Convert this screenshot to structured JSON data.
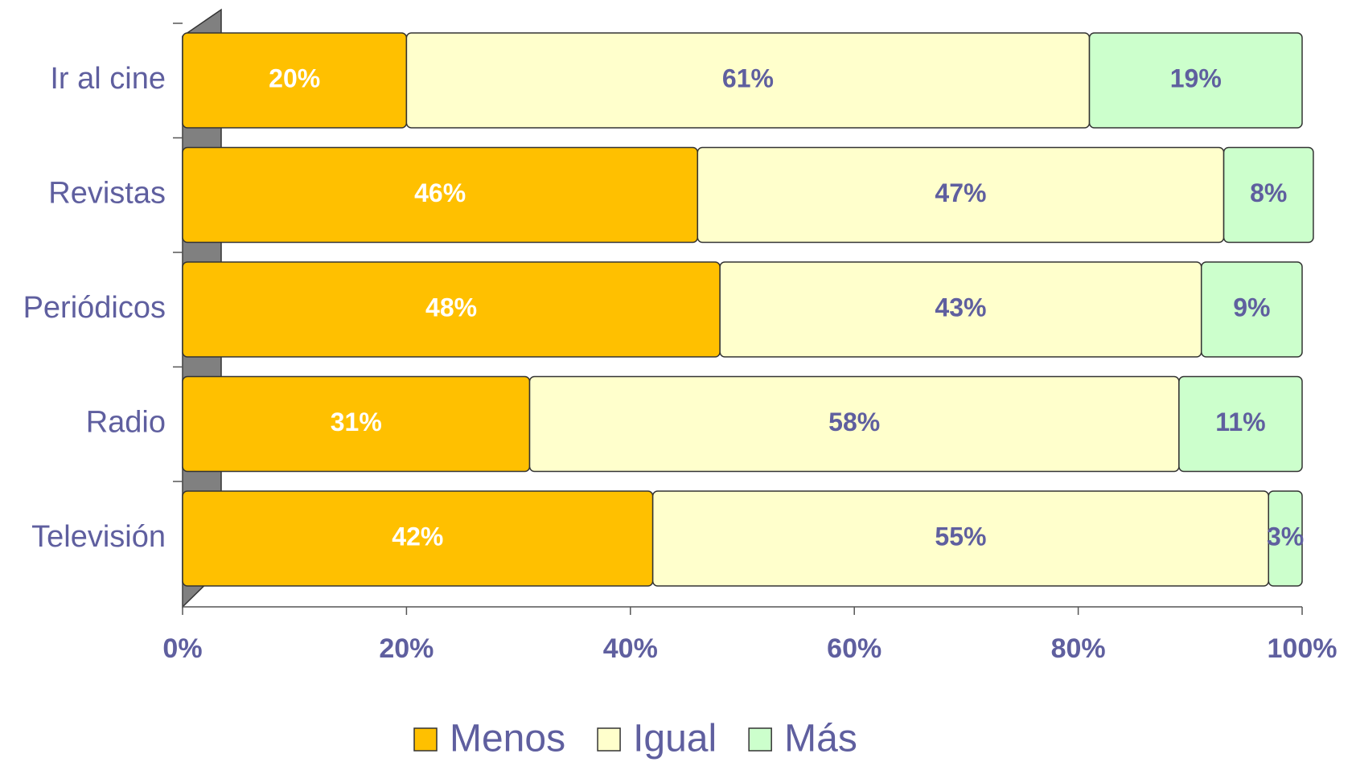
{
  "chart_data": {
    "type": "bar",
    "orientation": "horizontal",
    "stacked": true,
    "categories": [
      "Ir al cine",
      "Revistas",
      "Periódicos",
      "Radio",
      "Televisión"
    ],
    "series": [
      {
        "name": "Menos",
        "color": "#FFC000",
        "label_color": "#FFFFFF",
        "values": [
          20,
          46,
          48,
          31,
          42
        ],
        "value_labels": [
          "20%",
          "46%",
          "48%",
          "31%",
          "42%"
        ]
      },
      {
        "name": "Igual",
        "color": "#FFFFCC",
        "label_color": "#5F5F9F",
        "values": [
          61,
          47,
          43,
          58,
          55
        ],
        "value_labels": [
          "61%",
          "47%",
          "43%",
          "58%",
          "55%"
        ]
      },
      {
        "name": "Más",
        "color": "#CCFFCC",
        "label_color": "#5F5F9F",
        "values": [
          19,
          8,
          9,
          11,
          3
        ],
        "value_labels": [
          "19%",
          "8%",
          "9%",
          "11%",
          "3%"
        ]
      }
    ],
    "xlim": [
      0,
      100
    ],
    "xticks": [
      {
        "value": 0,
        "label": "0%"
      },
      {
        "value": 20,
        "label": "20%"
      },
      {
        "value": 40,
        "label": "40%"
      },
      {
        "value": 60,
        "label": "60%"
      },
      {
        "value": 80,
        "label": "80%"
      },
      {
        "value": 100,
        "label": "100%"
      }
    ],
    "legend": "bottom"
  }
}
